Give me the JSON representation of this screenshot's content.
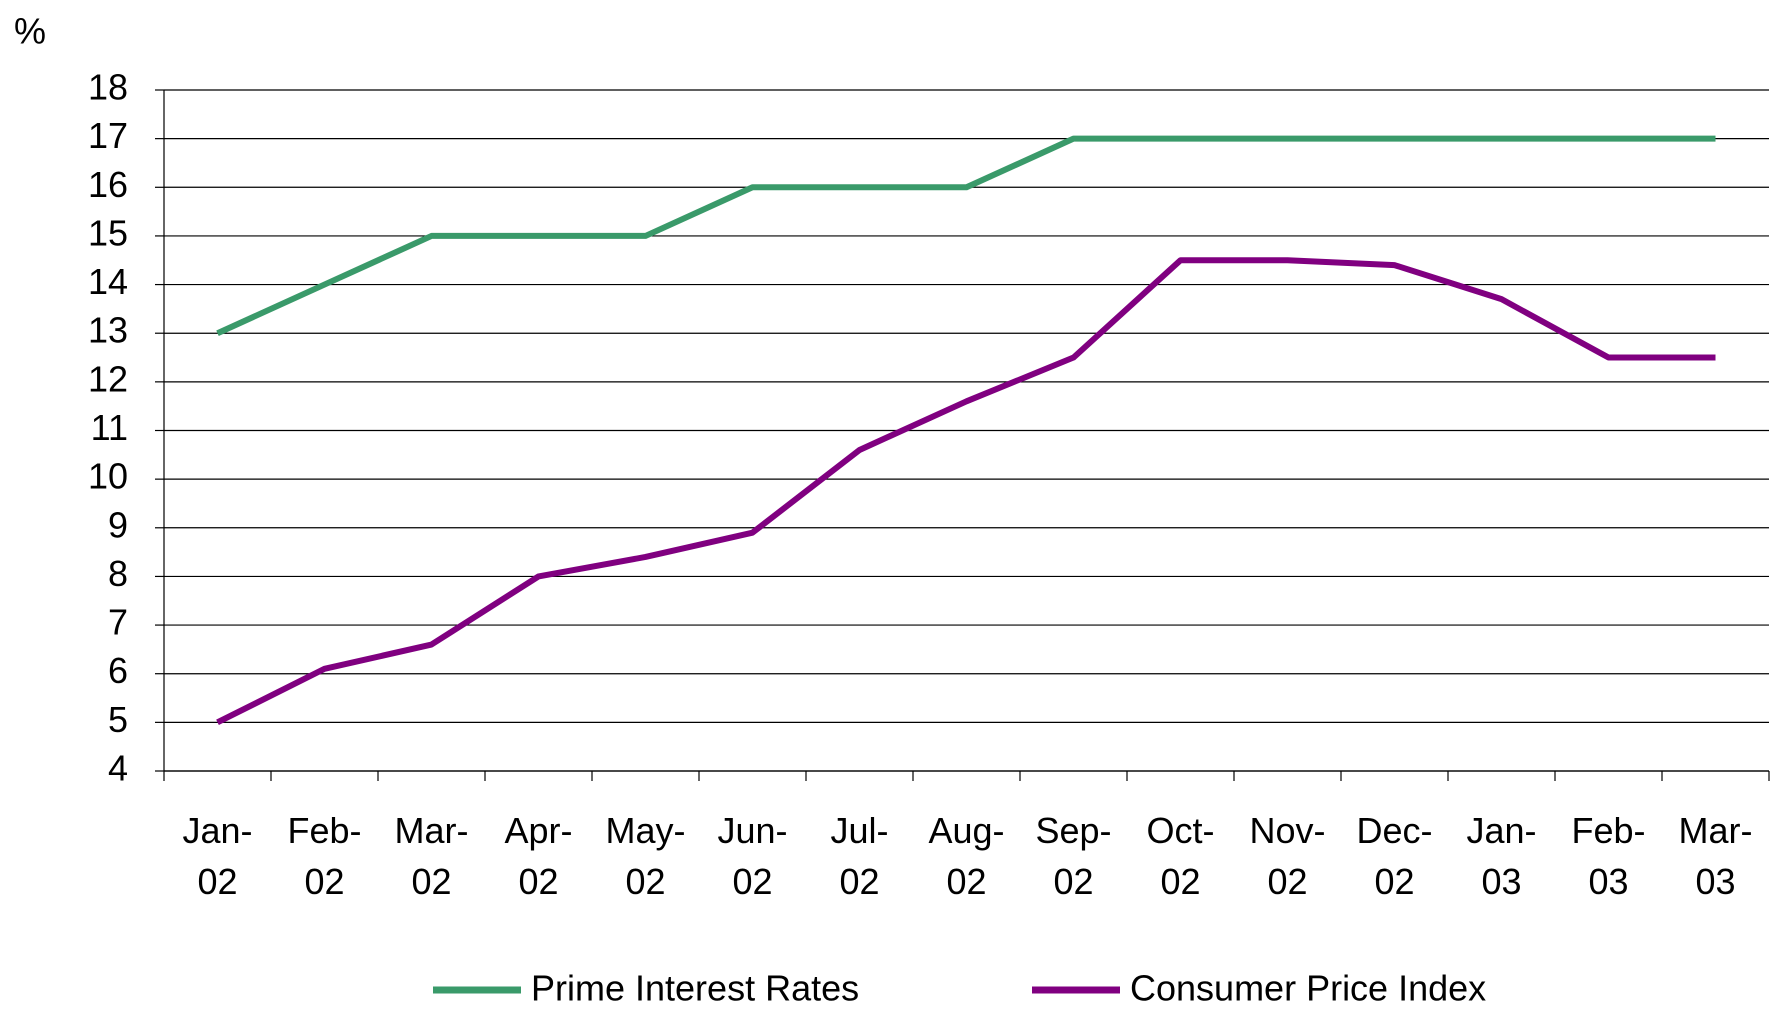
{
  "chart_data": {
    "type": "line",
    "y_label": "%",
    "categories": [
      "Jan-02",
      "Feb-02",
      "Mar-02",
      "Apr-02",
      "May-02",
      "Jun-02",
      "Jul-02",
      "Aug-02",
      "Sep-02",
      "Oct-02",
      "Nov-02",
      "Dec-02",
      "Jan-03",
      "Feb-03",
      "Mar-03"
    ],
    "series": [
      {
        "name": "Prime Interest Rates",
        "color": "#3a9a6a",
        "values": [
          13,
          14,
          15,
          15,
          15,
          16,
          16,
          16,
          17,
          17,
          17,
          17,
          17,
          17,
          17
        ]
      },
      {
        "name": "Consumer Price Index",
        "color": "#800080",
        "values": [
          5,
          6.1,
          6.6,
          8,
          8.4,
          8.9,
          10.6,
          11.6,
          12.5,
          14.5,
          14.5,
          14.4,
          13.7,
          12.5,
          12.5
        ]
      }
    ],
    "ylim": [
      4,
      18
    ],
    "yticks": [
      4,
      5,
      6,
      7,
      8,
      9,
      10,
      11,
      12,
      13,
      14,
      15,
      16,
      17,
      18
    ],
    "grid": true,
    "legend": "bottom"
  }
}
